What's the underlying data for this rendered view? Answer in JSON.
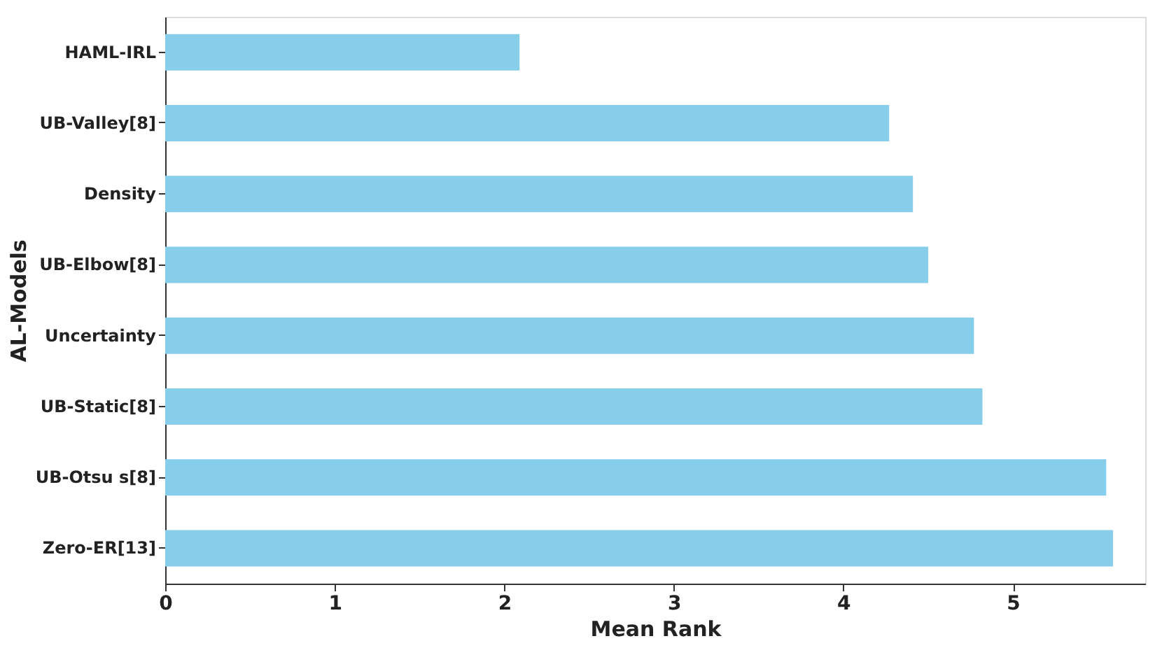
{
  "chart_data": {
    "type": "bar",
    "orientation": "horizontal",
    "xlabel": "Mean Rank",
    "ylabel": "AL-Models",
    "categories": [
      "HAML-IRL",
      "UB-Valley[8]",
      "Density",
      "UB-Elbow[8]",
      "Uncertainty",
      "UB-Static[8]",
      "UB-Otsu s[8]",
      "Zero-ER[13]"
    ],
    "values": [
      2.09,
      4.27,
      4.41,
      4.5,
      4.77,
      4.82,
      5.55,
      5.59
    ],
    "color": "#87ceeb",
    "xlim": [
      0,
      5.78
    ],
    "xticks": [
      0,
      1,
      2,
      3,
      4,
      5
    ],
    "grid": false
  }
}
